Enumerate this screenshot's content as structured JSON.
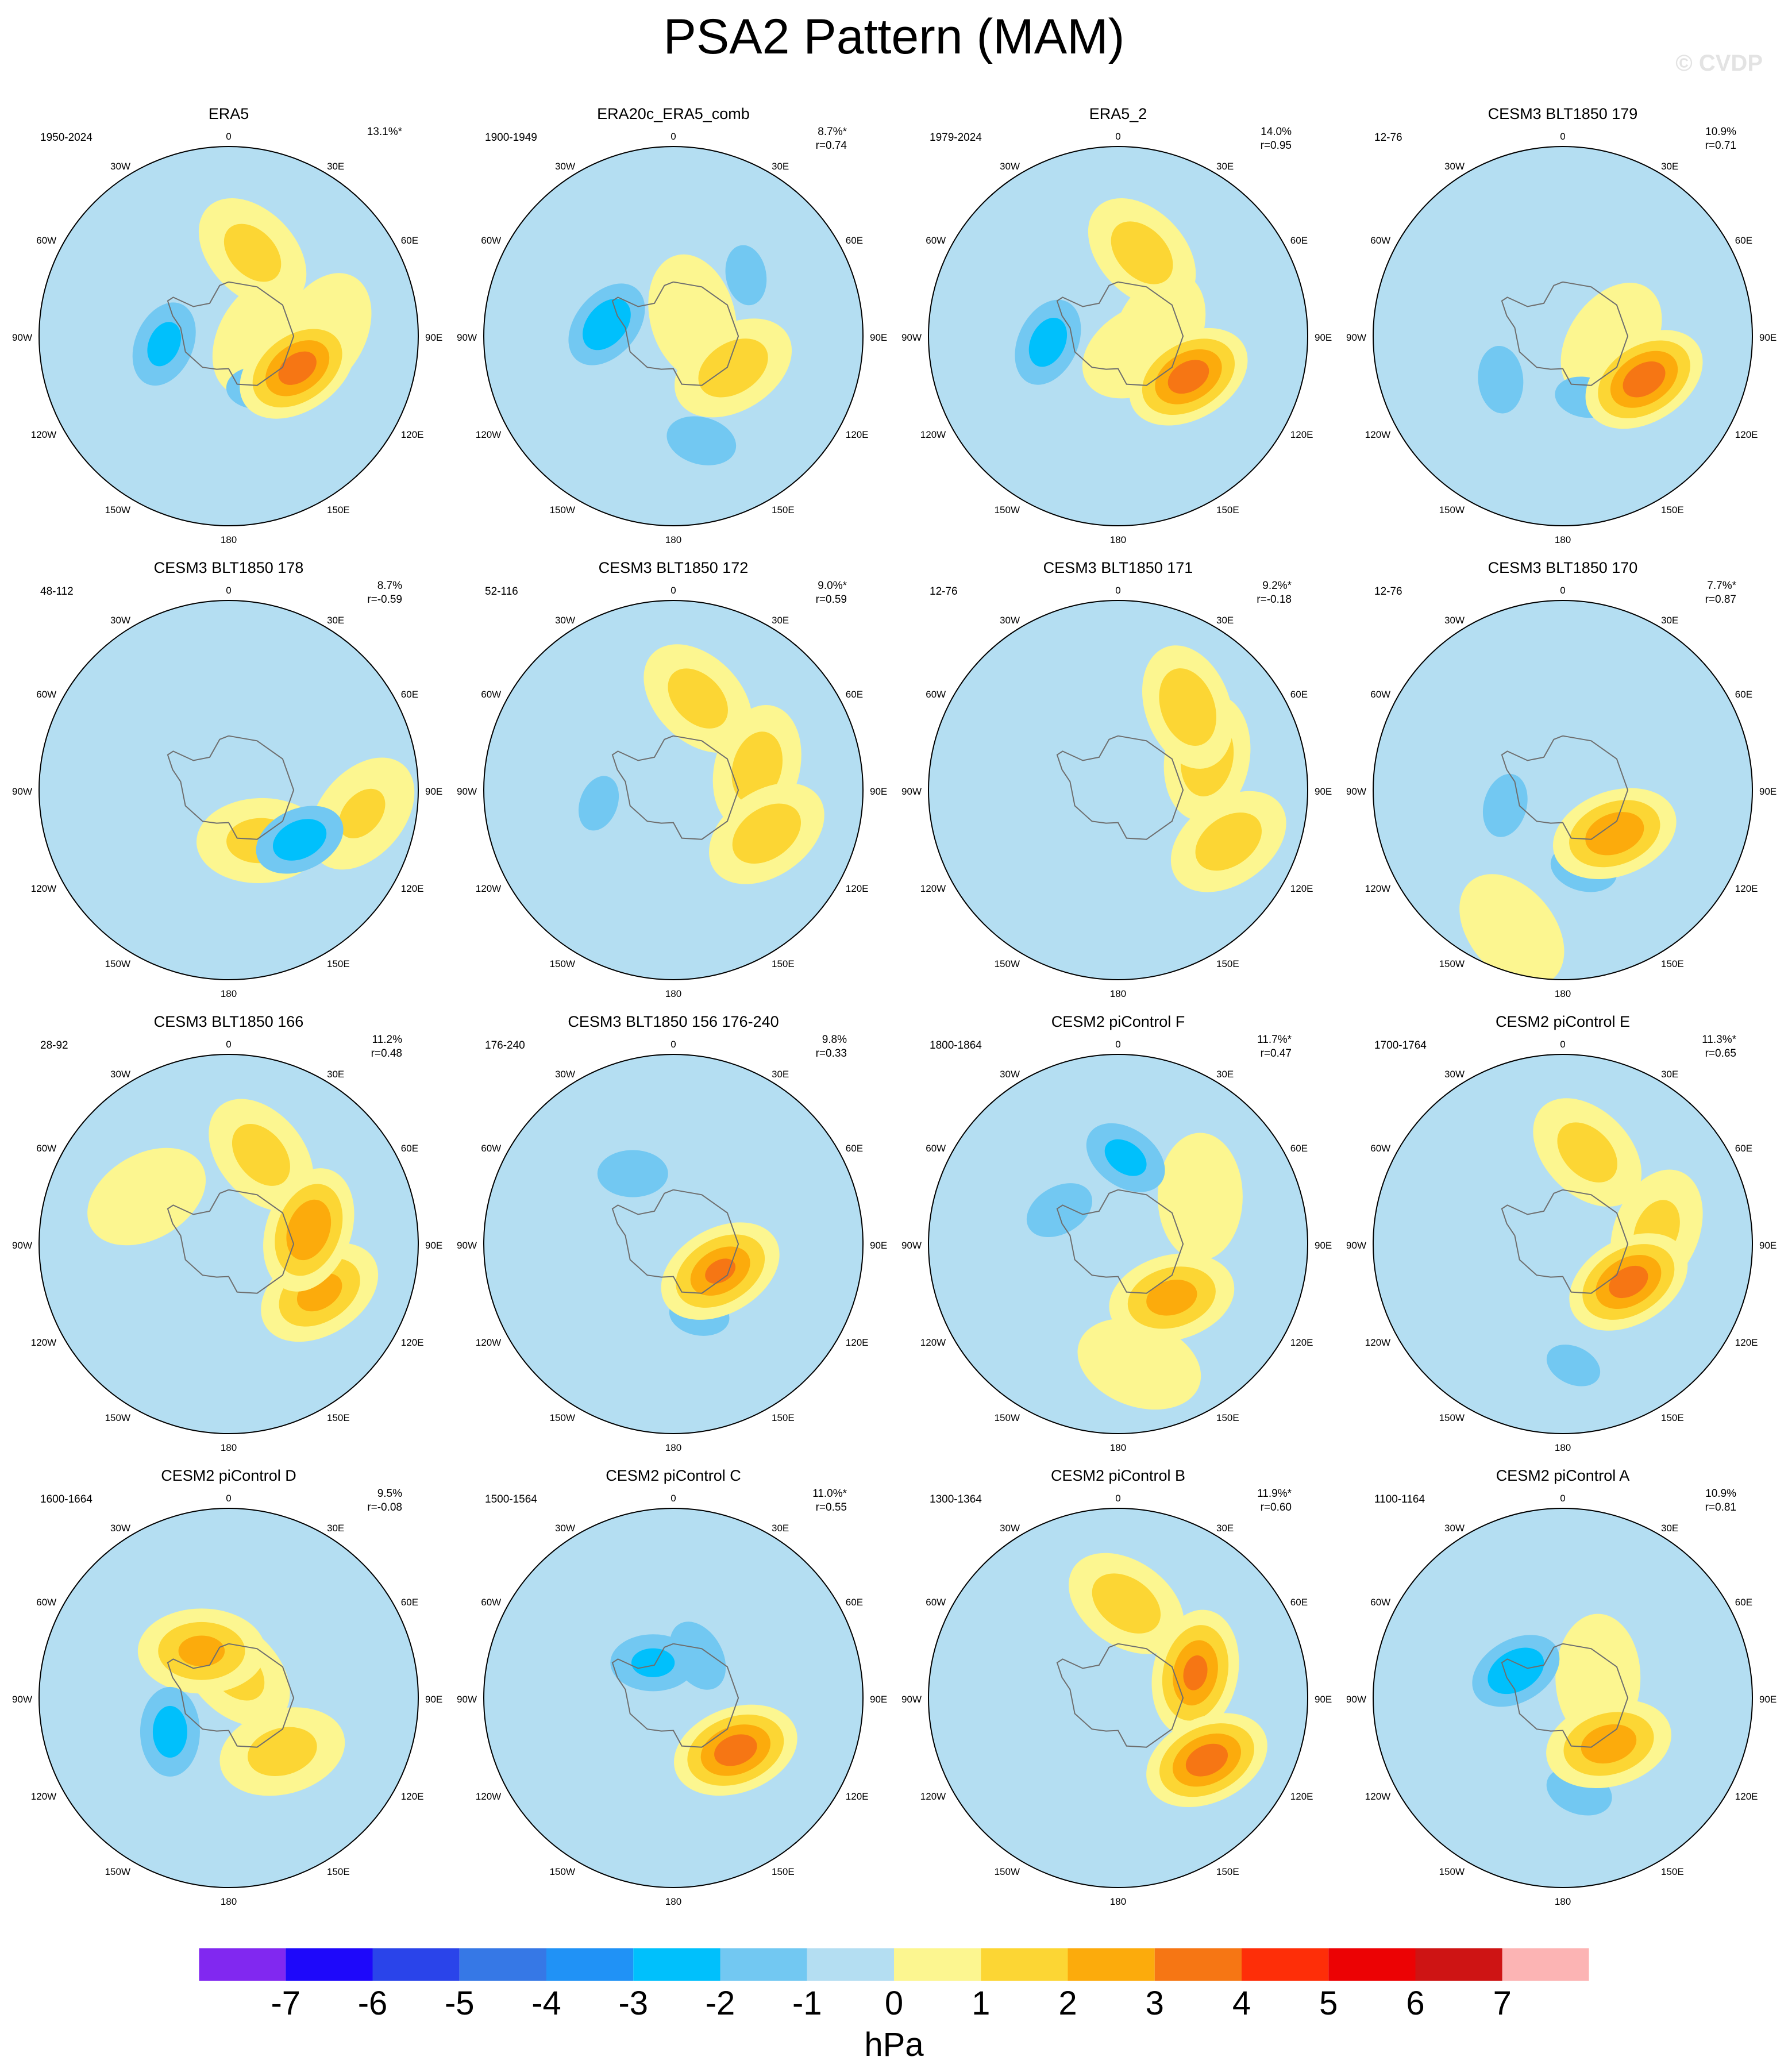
{
  "figure": {
    "title": "PSA2 Pattern (MAM)",
    "watermark": "© CVDP",
    "colorbar": {
      "unit": "hPa",
      "levels": [
        -7,
        -6,
        -5,
        -4,
        -3,
        -2,
        -1,
        0,
        1,
        2,
        3,
        4,
        5,
        6,
        7
      ],
      "colors": [
        "#8128f0",
        "#1e08fa",
        "#2a44ea",
        "#3678e6",
        "#2092f6",
        "#00c0fc",
        "#72c8f2",
        "#b4def2",
        "#fcf690",
        "#fcd634",
        "#fcab0c",
        "#f67614",
        "#fe2e08",
        "#ec0204",
        "#ce1414",
        "#fcb4b4"
      ]
    },
    "longitude_labels": {
      "top": "0",
      "bottom": "180",
      "upper_right": "30E",
      "right_high": "60E",
      "right": "90E",
      "right_low": "120E",
      "lower_right": "150E",
      "upper_left": "30W",
      "left_high": "60W",
      "left": "90W",
      "left_low": "120W",
      "lower_left": "150W"
    }
  },
  "chart_data": [
    {
      "type": "heatmap",
      "title": "ERA5",
      "period": "1950-2024",
      "variance": "13.1%*",
      "correlation": "",
      "features": [
        {
          "lon": 115,
          "lat": -62,
          "value": 3.4
        },
        {
          "lon": 263,
          "lat": -66,
          "value": -2.2
        },
        {
          "lon": 16,
          "lat": -58,
          "value": 1.3
        },
        {
          "lon": 88,
          "lat": -55,
          "value": 0.9
        },
        {
          "lon": 90,
          "lat": -78,
          "value": 0.8
        },
        {
          "lon": 150,
          "lat": -68,
          "value": -1.2
        }
      ]
    },
    {
      "type": "heatmap",
      "title": "ERA20c_ERA5_comb",
      "period": "1900-1949",
      "variance": "8.7%*",
      "correlation": "r=0.74",
      "features": [
        {
          "lon": 280,
          "lat": -65,
          "value": -2.7
        },
        {
          "lon": 118,
          "lat": -65,
          "value": 1.6
        },
        {
          "lon": 165,
          "lat": -50,
          "value": -1.4
        },
        {
          "lon": 50,
          "lat": -55,
          "value": -1.1
        },
        {
          "lon": 45,
          "lat": -80,
          "value": 0.7
        }
      ]
    },
    {
      "type": "heatmap",
      "title": "ERA5_2",
      "period": "1979-2024",
      "variance": "14.0%",
      "correlation": "r=0.95",
      "features": [
        {
          "lon": 120,
          "lat": -60,
          "value": 3.5
        },
        {
          "lon": 265,
          "lat": -64,
          "value": -2.4
        },
        {
          "lon": 16,
          "lat": -58,
          "value": 1.5
        },
        {
          "lon": 85,
          "lat": -75,
          "value": 0.8
        },
        {
          "lon": 120,
          "lat": -80,
          "value": 0.6
        }
      ]
    },
    {
      "type": "heatmap",
      "title": "CESM3 BLT1850 179",
      "period": "12-76",
      "variance": "10.9%",
      "correlation": "r=0.71",
      "features": [
        {
          "lon": 118,
          "lat": -56,
          "value": 3.6
        },
        {
          "lon": 235,
          "lat": -62,
          "value": -1.3
        },
        {
          "lon": 160,
          "lat": -66,
          "value": -1.1
        },
        {
          "lon": 20,
          "lat": -45,
          "value": -0.8
        },
        {
          "lon": 95,
          "lat": -72,
          "value": 0.8
        }
      ]
    },
    {
      "type": "heatmap",
      "title": "CESM3 BLT1850 178",
      "period": "48-112",
      "variance": "8.7%",
      "correlation": "r=-0.59",
      "features": [
        {
          "lon": 125,
          "lat": -58,
          "value": -2.6
        },
        {
          "lon": 148,
          "lat": -68,
          "value": 1.3
        },
        {
          "lon": 100,
          "lat": -40,
          "value": 1.0
        },
        {
          "lon": 70,
          "lat": -55,
          "value": -0.9
        },
        {
          "lon": 5,
          "lat": -55,
          "value": -0.8
        }
      ]
    },
    {
      "type": "heatmap",
      "title": "CESM3 BLT1850 172",
      "period": "52-116",
      "variance": "9.0%*",
      "correlation": "r=0.59",
      "features": [
        {
          "lon": 115,
          "lat": -52,
          "value": 1.6
        },
        {
          "lon": 15,
          "lat": -55,
          "value": 1.4
        },
        {
          "lon": 75,
          "lat": -58,
          "value": 1.5
        },
        {
          "lon": 260,
          "lat": -62,
          "value": -1.0
        },
        {
          "lon": 55,
          "lat": -48,
          "value": -0.8
        }
      ]
    },
    {
      "type": "heatmap",
      "title": "CESM3 BLT1850 171",
      "period": "12-76",
      "variance": "9.2%*",
      "correlation": "r=-0.18",
      "features": [
        {
          "lon": 115,
          "lat": -45,
          "value": 1.5
        },
        {
          "lon": 40,
          "lat": -50,
          "value": 1.8
        },
        {
          "lon": 70,
          "lat": -55,
          "value": 1.7
        },
        {
          "lon": 300,
          "lat": -55,
          "value": -0.9
        },
        {
          "lon": 160,
          "lat": -70,
          "value": -0.8
        }
      ]
    },
    {
      "type": "heatmap",
      "title": "CESM3 BLT1850 170",
      "period": "12-76",
      "variance": "7.7%*",
      "correlation": "r=0.87",
      "features": [
        {
          "lon": 130,
          "lat": -65,
          "value": 2.8
        },
        {
          "lon": 165,
          "lat": -60,
          "value": -1.3
        },
        {
          "lon": 255,
          "lat": -68,
          "value": -1.2
        },
        {
          "lon": 200,
          "lat": -35,
          "value": 0.8
        }
      ]
    },
    {
      "type": "heatmap",
      "title": "CESM3 BLT1850 166",
      "period": "28-92",
      "variance": "11.2%",
      "correlation": "r=0.48",
      "features": [
        {
          "lon": 118,
          "lat": -52,
          "value": 2.3
        },
        {
          "lon": 80,
          "lat": -60,
          "value": 2.9
        },
        {
          "lon": 20,
          "lat": -55,
          "value": 1.4
        },
        {
          "lon": 300,
          "lat": -55,
          "value": 0.8
        }
      ]
    },
    {
      "type": "heatmap",
      "title": "CESM3 BLT1850 156 176-240",
      "period": "176-240",
      "variance": "9.8%",
      "correlation": "r=0.33",
      "features": [
        {
          "lon": 120,
          "lat": -70,
          "value": 3.0
        },
        {
          "lon": 330,
          "lat": -60,
          "value": -1.4
        },
        {
          "lon": 160,
          "lat": -62,
          "value": -1.1
        },
        {
          "lon": 95,
          "lat": -45,
          "value": -0.8
        }
      ]
    },
    {
      "type": "heatmap",
      "title": "CESM2 piControl F",
      "period": "1800-1864",
      "variance": "11.7%*",
      "correlation": "r=0.47",
      "features": [
        {
          "lon": 135,
          "lat": -62,
          "value": 2.4
        },
        {
          "lon": 5,
          "lat": -58,
          "value": -2.2
        },
        {
          "lon": 300,
          "lat": -65,
          "value": -1.4
        },
        {
          "lon": 60,
          "lat": -55,
          "value": 0.8
        },
        {
          "lon": 170,
          "lat": -45,
          "value": 0.8
        }
      ]
    },
    {
      "type": "heatmap",
      "title": "CESM2 piControl E",
      "period": "1700-1764",
      "variance": "11.3%*",
      "correlation": "r=0.65",
      "features": [
        {
          "lon": 120,
          "lat": -62,
          "value": 3.4
        },
        {
          "lon": 15,
          "lat": -55,
          "value": 1.4
        },
        {
          "lon": 82,
          "lat": -55,
          "value": 1.2
        },
        {
          "lon": 175,
          "lat": -45,
          "value": -1.0
        }
      ]
    },
    {
      "type": "heatmap",
      "title": "CESM2 piControl D",
      "period": "1600-1664",
      "variance": "9.5%",
      "correlation": "r=-0.08",
      "features": [
        {
          "lon": 240,
          "lat": -65,
          "value": -2.4
        },
        {
          "lon": 330,
          "lat": -70,
          "value": 2.2
        },
        {
          "lon": 135,
          "lat": -62,
          "value": 1.4
        },
        {
          "lon": 15,
          "lat": -80,
          "value": 1.3
        }
      ]
    },
    {
      "type": "heatmap",
      "title": "CESM2 piControl C",
      "period": "1500-1564",
      "variance": "11.0%*",
      "correlation": "r=0.55",
      "features": [
        {
          "lon": 130,
          "lat": -60,
          "value": 3.5
        },
        {
          "lon": 330,
          "lat": -75,
          "value": -2.1
        },
        {
          "lon": 30,
          "lat": -72,
          "value": -1.5
        },
        {
          "lon": 170,
          "lat": -40,
          "value": -0.9
        }
      ]
    },
    {
      "type": "heatmap",
      "title": "CESM2 piControl B",
      "period": "1300-1364",
      "variance": "11.9%*",
      "correlation": "r=0.60",
      "features": [
        {
          "lon": 125,
          "lat": -50,
          "value": 3.5
        },
        {
          "lon": 72,
          "lat": -60,
          "value": 3.1
        },
        {
          "lon": 5,
          "lat": -55,
          "value": 1.6
        },
        {
          "lon": 285,
          "lat": -60,
          "value": -0.9
        }
      ]
    },
    {
      "type": "heatmap",
      "title": "CESM2 piControl A",
      "period": "1100-1164",
      "variance": "10.9%",
      "correlation": "r=0.81",
      "features": [
        {
          "lon": 135,
          "lat": -66,
          "value": 2.6
        },
        {
          "lon": 300,
          "lat": -70,
          "value": -2.8
        },
        {
          "lon": 170,
          "lat": -55,
          "value": -1.3
        },
        {
          "lon": 145,
          "lat": -70,
          "value": -1.0
        },
        {
          "lon": 60,
          "lat": -75,
          "value": 0.8
        }
      ]
    }
  ]
}
